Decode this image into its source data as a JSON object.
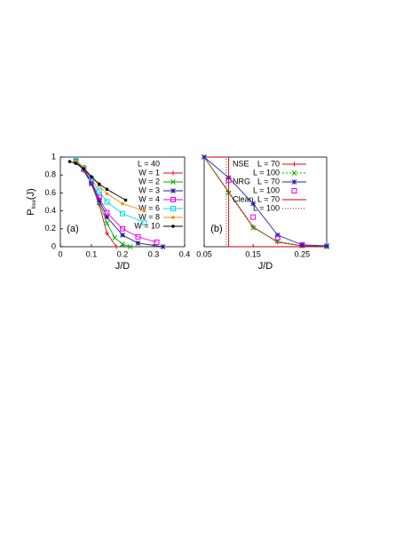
{
  "chart_data": [
    {
      "type": "line",
      "panel_label": "(a)",
      "x_label": "J/D",
      "y_label": {
        "main": "P",
        "sub": "free",
        "tail": "(J)"
      },
      "legend_title": "L = 40",
      "xlim": [
        0,
        0.4
      ],
      "ylim": [
        0,
        1
      ],
      "xticks": [
        0,
        0.1,
        0.2,
        0.3,
        0.4
      ],
      "yticks": [
        0,
        0.2,
        0.4,
        0.6,
        0.8,
        1
      ],
      "series": [
        {
          "name": "W = 1",
          "color": "#e8001c",
          "marker": "plus",
          "x": [
            0.05,
            0.075,
            0.1,
            0.125,
            0.15,
            0.18
          ],
          "values": [
            0.95,
            0.85,
            0.7,
            0.47,
            0.15,
            0
          ]
        },
        {
          "name": "W = 2",
          "color": "#00b000",
          "marker": "x",
          "x": [
            0.05,
            0.075,
            0.1,
            0.125,
            0.15,
            0.175,
            0.2,
            0.225
          ],
          "values": [
            0.95,
            0.86,
            0.7,
            0.5,
            0.26,
            0.1,
            0.03,
            0
          ]
        },
        {
          "name": "W = 3",
          "color": "#1c1c8c",
          "marker": "star",
          "x": [
            0.05,
            0.075,
            0.1,
            0.125,
            0.15,
            0.2,
            0.25,
            0.33
          ],
          "values": [
            0.96,
            0.86,
            0.71,
            0.52,
            0.33,
            0.13,
            0.04,
            0
          ]
        },
        {
          "name": "W = 4",
          "color": "#e800e8",
          "marker": "square",
          "x": [
            0.05,
            0.075,
            0.1,
            0.125,
            0.15,
            0.2,
            0.25,
            0.31
          ],
          "values": [
            0.96,
            0.87,
            0.73,
            0.55,
            0.38,
            0.2,
            0.11,
            0.05
          ]
        },
        {
          "name": "W = 6",
          "color": "#00d8e8",
          "marker": "square",
          "x": [
            0.05,
            0.075,
            0.1,
            0.125,
            0.15,
            0.2,
            0.27
          ],
          "values": [
            0.96,
            0.88,
            0.76,
            0.62,
            0.5,
            0.37,
            0.27
          ]
        },
        {
          "name": "W = 8",
          "color": "#f08c00",
          "marker": "circle",
          "x": [
            0.05,
            0.075,
            0.1,
            0.125,
            0.15,
            0.2,
            0.27
          ],
          "values": [
            0.96,
            0.89,
            0.78,
            0.68,
            0.59,
            0.48,
            0.4
          ]
        },
        {
          "name": "W = 10",
          "color": "#000000",
          "marker": "circle",
          "x": [
            0.03,
            0.05,
            0.075,
            0.1,
            0.125,
            0.15,
            0.21
          ],
          "values": [
            0.95,
            0.93,
            0.87,
            0.78,
            0.7,
            0.64,
            0.52
          ]
        }
      ]
    },
    {
      "type": "line",
      "panel_label": "(b)",
      "x_label": "J/D",
      "xlim": [
        0.05,
        0.3
      ],
      "ylim": [
        0,
        1
      ],
      "xticks": [
        0.05,
        0.15,
        0.25
      ],
      "series": [
        {
          "group": "NSE",
          "name": "L = 70",
          "color": "#e8001c",
          "marker": "plus",
          "x": [
            0.05,
            0.1,
            0.15,
            0.2,
            0.25,
            0.3
          ],
          "values": [
            1,
            0.61,
            0.22,
            0.05,
            0.01,
            0
          ]
        },
        {
          "name": "L = 100",
          "color": "#00b000",
          "marker": "x",
          "dash": "2,2",
          "x": [
            0.05,
            0.1,
            0.15,
            0.2,
            0.25,
            0.3
          ],
          "values": [
            1,
            0.6,
            0.21,
            0.06,
            0.01,
            0
          ]
        },
        {
          "group": "NRG",
          "name": "L = 70",
          "color": "#2020c0",
          "marker": "star",
          "x": [
            0.05,
            0.1,
            0.15,
            0.2,
            0.25,
            0.3
          ],
          "values": [
            1,
            0.77,
            0.48,
            0.13,
            0.02,
            0.01
          ]
        },
        {
          "name": "L = 100",
          "color": "#e800e8",
          "marker": "square",
          "nolines": true,
          "x": [
            0.1,
            0.15,
            0.2,
            0.25
          ],
          "values": [
            0.74,
            0.33,
            0.1,
            0.02
          ]
        },
        {
          "group": "Clean",
          "name": "L = 70",
          "color": "#d00000",
          "x": [
            0.05,
            0.1,
            0.1,
            0.3
          ],
          "values": [
            1,
            1,
            0,
            0
          ]
        },
        {
          "name": "L = 100",
          "color": "#8b0000",
          "dash": "1,2",
          "x": [
            0.05,
            0.095,
            0.095,
            0.3
          ],
          "values": [
            1,
            1,
            0,
            0
          ]
        }
      ]
    }
  ]
}
